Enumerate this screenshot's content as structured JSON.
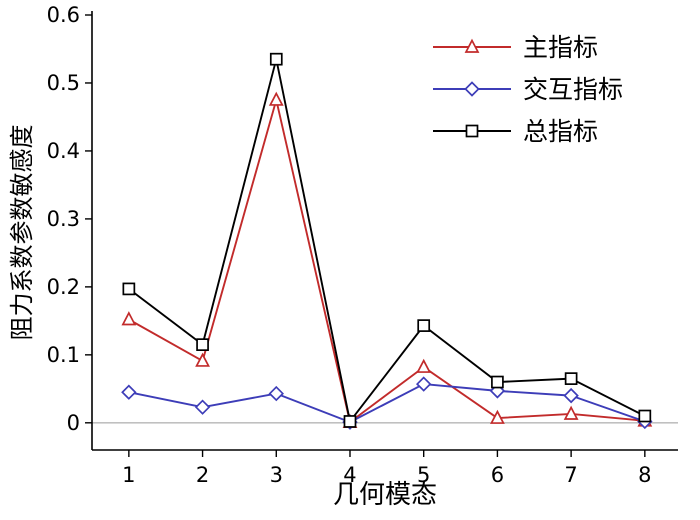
{
  "chart_data": {
    "type": "line",
    "title": "",
    "xlabel": "几何模态",
    "ylabel": "阻力系数参数敏感度",
    "x": [
      1,
      2,
      3,
      4,
      5,
      6,
      7,
      8
    ],
    "xlim": [
      0.5,
      8.45
    ],
    "ylim": [
      -0.04,
      0.6
    ],
    "xticks": [
      1,
      2,
      3,
      4,
      5,
      6,
      7,
      8
    ],
    "yticks": [
      0,
      0.1,
      0.2,
      0.3,
      0.4,
      0.5,
      0.6
    ],
    "ytick_labels": [
      "0",
      "0.1",
      "0.2",
      "0.3",
      "0.4",
      "0.5",
      "0.6"
    ],
    "grid": false,
    "zero_line": true,
    "zero_line_color": "#9a9a9a",
    "legend_position": "top-right",
    "series": [
      {
        "name": "主指标",
        "color": "#c22b2b",
        "marker": "triangle",
        "values": [
          0.152,
          0.091,
          0.475,
          0.001,
          0.082,
          0.007,
          0.013,
          0.003
        ]
      },
      {
        "name": "交互指标",
        "color": "#3d3db8",
        "marker": "diamond",
        "values": [
          0.045,
          0.023,
          0.043,
          0.001,
          0.057,
          0.047,
          0.04,
          0.002
        ]
      },
      {
        "name": "总指标",
        "color": "#000000",
        "marker": "square",
        "values": [
          0.197,
          0.115,
          0.535,
          0.002,
          0.143,
          0.06,
          0.065,
          0.01
        ]
      }
    ]
  }
}
